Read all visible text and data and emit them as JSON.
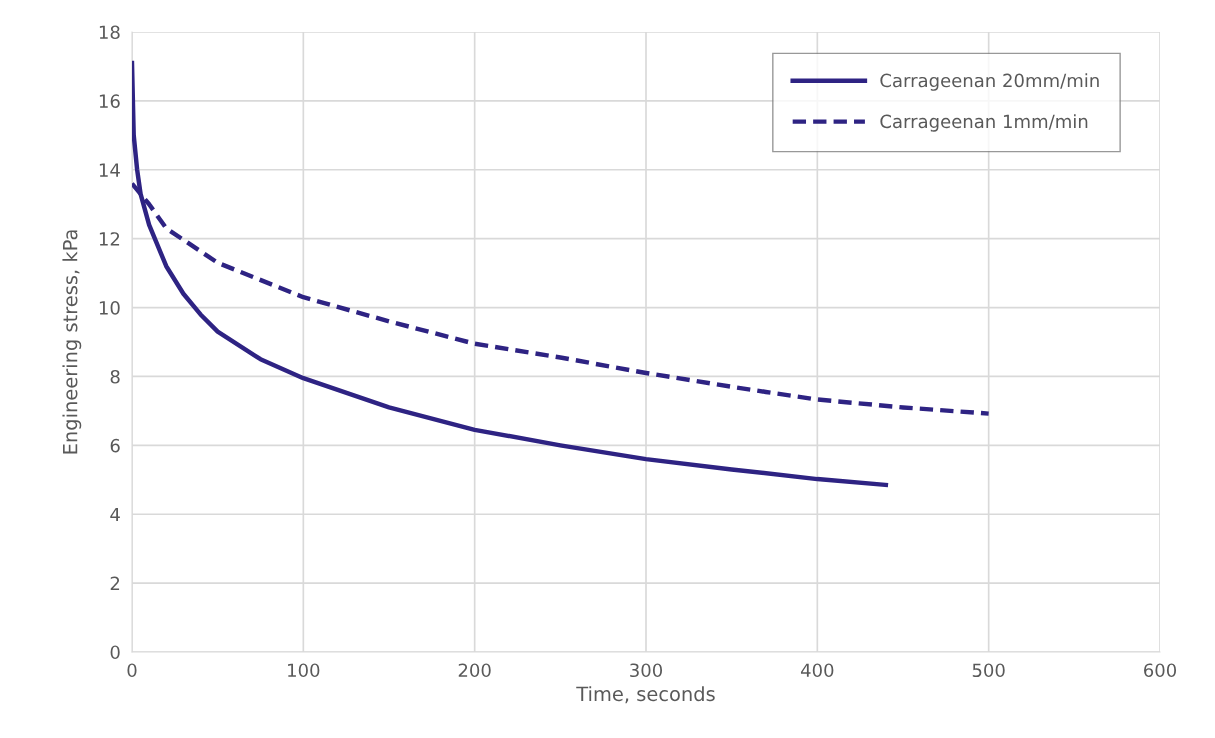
{
  "chart_data": {
    "type": "line",
    "xlabel": "Time, seconds",
    "ylabel": "Engineering stress, kPa",
    "xlim": [
      0,
      600
    ],
    "xticks": [
      0,
      100,
      200,
      300,
      400,
      500,
      600
    ],
    "ylim": [
      0,
      18
    ],
    "yticks": [
      0,
      2,
      4,
      6,
      8,
      10,
      12,
      14,
      16,
      18
    ],
    "grid": true,
    "legend": "top right",
    "marker": "none",
    "series": [
      {
        "name": "Carrageenan 20mm/min",
        "color": "#2e2383",
        "line_style": "solid",
        "x": [
          0,
          1,
          3,
          5,
          10,
          20,
          30,
          40,
          50,
          75,
          100,
          150,
          200,
          250,
          300,
          350,
          400,
          440
        ],
        "values": [
          17.1,
          15.0,
          14.0,
          13.3,
          12.4,
          11.2,
          10.4,
          9.8,
          9.3,
          8.5,
          7.95,
          7.1,
          6.45,
          6.0,
          5.6,
          5.3,
          5.02,
          4.85
        ]
      },
      {
        "name": "Carrageenan 1mm/min",
        "color": "#2e2383",
        "line_style": "dashed",
        "x": [
          0,
          10,
          20,
          50,
          100,
          150,
          200,
          250,
          300,
          350,
          370,
          400,
          450,
          500
        ],
        "values": [
          13.6,
          13.0,
          12.3,
          11.3,
          10.3,
          9.6,
          8.95,
          8.55,
          8.1,
          7.7,
          7.55,
          7.33,
          7.1,
          6.92
        ]
      }
    ]
  }
}
